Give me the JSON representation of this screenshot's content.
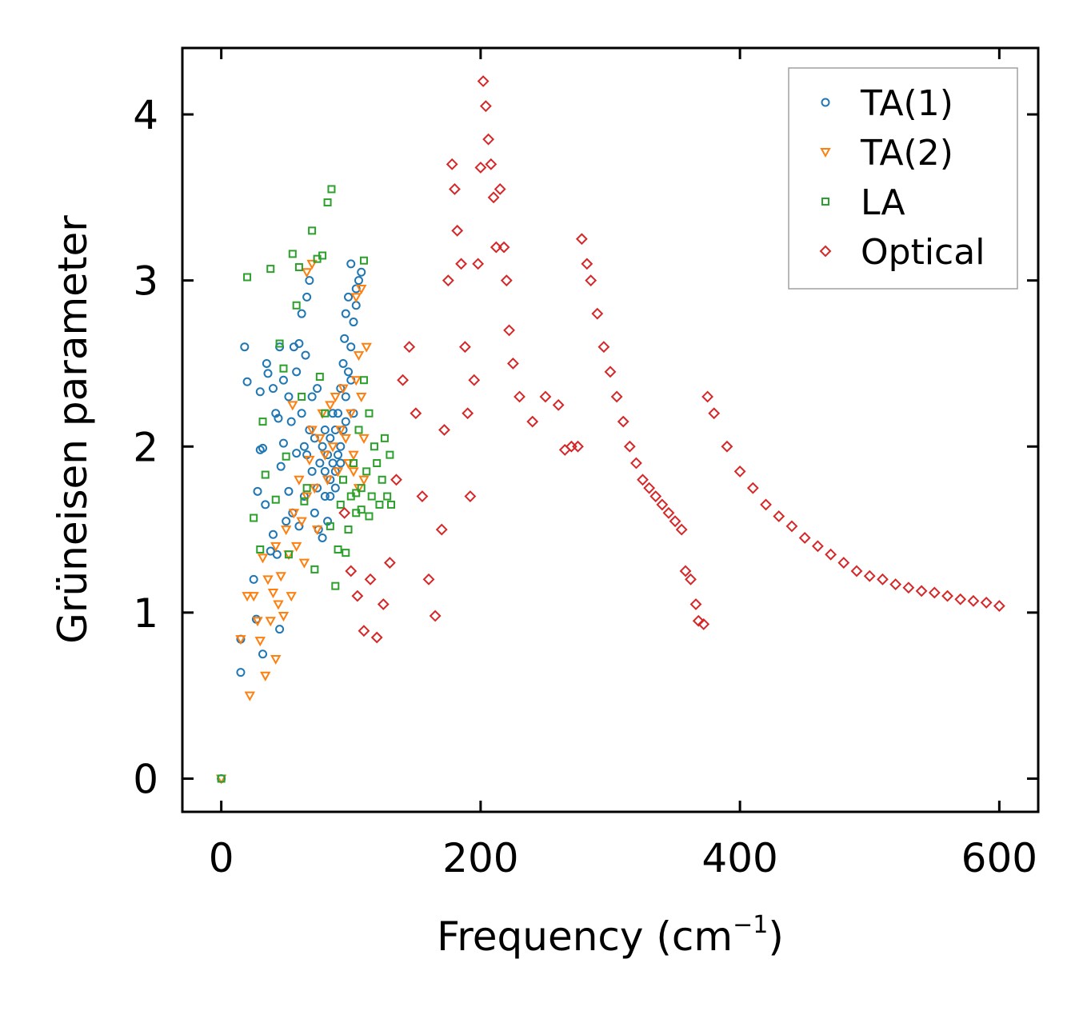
{
  "chart_data": {
    "type": "scatter",
    "title": "",
    "xlabel": "Frequency (cm",
    "xlabel_sup": "−1",
    "xlabel_suffix": ")",
    "ylabel": "Grüneisen parameter",
    "xlim": [
      -30,
      630
    ],
    "ylim": [
      -0.2,
      4.4
    ],
    "xticks": [
      0,
      200,
      400,
      600
    ],
    "yticks": [
      0,
      1,
      2,
      3,
      4
    ],
    "xtick_labels": [
      "0",
      "200",
      "400",
      "600"
    ],
    "ytick_labels": [
      "0",
      "1",
      "2",
      "3",
      "4"
    ],
    "grid": false,
    "legend_position": "top-right",
    "series": [
      {
        "name": "TA(1)",
        "marker": "circle",
        "color": "#1f77b4",
        "points": [
          [
            0,
            0
          ],
          [
            15,
            0.84
          ],
          [
            15,
            0.64
          ],
          [
            18,
            2.6
          ],
          [
            20,
            2.39
          ],
          [
            25,
            1.2
          ],
          [
            27,
            0.96
          ],
          [
            28,
            1.73
          ],
          [
            30,
            2.33
          ],
          [
            30,
            1.98
          ],
          [
            32,
            1.99
          ],
          [
            32,
            0.75
          ],
          [
            34,
            1.65
          ],
          [
            35,
            2.5
          ],
          [
            36,
            2.44
          ],
          [
            38,
            1.37
          ],
          [
            40,
            2.35
          ],
          [
            40,
            1.47
          ],
          [
            42,
            2.2
          ],
          [
            43,
            1.35
          ],
          [
            44,
            2.17
          ],
          [
            45,
            0.9
          ],
          [
            45,
            2.6
          ],
          [
            46,
            1.88
          ],
          [
            48,
            2.02
          ],
          [
            48,
            2.4
          ],
          [
            50,
            1.55
          ],
          [
            52,
            2.3
          ],
          [
            52,
            1.73
          ],
          [
            54,
            2.15
          ],
          [
            55,
            1.6
          ],
          [
            56,
            2.6
          ],
          [
            58,
            1.96
          ],
          [
            58,
            2.45
          ],
          [
            60,
            2.62
          ],
          [
            60,
            1.52
          ],
          [
            62,
            2.2
          ],
          [
            62,
            2.8
          ],
          [
            64,
            2.0
          ],
          [
            64,
            1.7
          ],
          [
            65,
            2.55
          ],
          [
            66,
            2.9
          ],
          [
            66,
            1.95
          ],
          [
            68,
            3.0
          ],
          [
            68,
            2.1
          ],
          [
            70,
            1.85
          ],
          [
            70,
            2.3
          ],
          [
            72,
            1.6
          ],
          [
            72,
            2.05
          ],
          [
            74,
            1.75
          ],
          [
            74,
            2.35
          ],
          [
            75,
            1.5
          ],
          [
            76,
            1.9
          ],
          [
            78,
            2.0
          ],
          [
            78,
            1.45
          ],
          [
            80,
            2.1
          ],
          [
            80,
            1.7
          ],
          [
            82,
            1.95
          ],
          [
            82,
            1.55
          ],
          [
            84,
            2.05
          ],
          [
            84,
            1.8
          ],
          [
            86,
            1.9
          ],
          [
            86,
            2.2
          ],
          [
            88,
            2.1
          ],
          [
            88,
            1.75
          ],
          [
            90,
            2.2
          ],
          [
            90,
            1.95
          ],
          [
            92,
            2.35
          ],
          [
            92,
            2.0
          ],
          [
            94,
            2.5
          ],
          [
            94,
            2.1
          ],
          [
            95,
            2.65
          ],
          [
            96,
            2.3
          ],
          [
            96,
            2.8
          ],
          [
            98,
            2.45
          ],
          [
            98,
            2.9
          ],
          [
            100,
            2.6
          ],
          [
            100,
            3.1
          ],
          [
            102,
            2.75
          ],
          [
            102,
            2.2
          ],
          [
            104,
            2.85
          ],
          [
            104,
            2.95
          ],
          [
            106,
            3.0
          ],
          [
            108,
            3.05
          ],
          [
            100,
            2.4
          ],
          [
            96,
            2.15
          ],
          [
            92,
            1.9
          ],
          [
            88,
            1.85
          ],
          [
            84,
            1.7
          ],
          [
            80,
            1.85
          ]
        ]
      },
      {
        "name": "TA(2)",
        "marker": "triangle-down",
        "color": "#ff7f0e",
        "points": [
          [
            0,
            0
          ],
          [
            15,
            0.84
          ],
          [
            20,
            1.1
          ],
          [
            22,
            0.5
          ],
          [
            25,
            1.1
          ],
          [
            28,
            0.95
          ],
          [
            30,
            0.83
          ],
          [
            32,
            1.33
          ],
          [
            34,
            0.62
          ],
          [
            36,
            1.2
          ],
          [
            38,
            0.95
          ],
          [
            40,
            1.12
          ],
          [
            42,
            0.72
          ],
          [
            42,
            1.4
          ],
          [
            44,
            1.05
          ],
          [
            46,
            1.22
          ],
          [
            48,
            0.98
          ],
          [
            50,
            1.5
          ],
          [
            52,
            1.35
          ],
          [
            54,
            1.1
          ],
          [
            55,
            2.25
          ],
          [
            56,
            1.6
          ],
          [
            58,
            1.4
          ],
          [
            60,
            1.8
          ],
          [
            62,
            1.55
          ],
          [
            64,
            1.3
          ],
          [
            66,
            1.7
          ],
          [
            68,
            1.92
          ],
          [
            70,
            2.1
          ],
          [
            72,
            1.75
          ],
          [
            74,
            1.5
          ],
          [
            76,
            2.05
          ],
          [
            78,
            2.2
          ],
          [
            80,
            1.95
          ],
          [
            82,
            1.8
          ],
          [
            84,
            2.25
          ],
          [
            86,
            2.0
          ],
          [
            88,
            2.3
          ],
          [
            90,
            1.85
          ],
          [
            92,
            2.1
          ],
          [
            94,
            2.35
          ],
          [
            96,
            2.05
          ],
          [
            98,
            1.9
          ],
          [
            100,
            2.2
          ],
          [
            102,
            1.95
          ],
          [
            104,
            2.4
          ],
          [
            106,
            2.55
          ],
          [
            108,
            2.3
          ],
          [
            110,
            2.05
          ],
          [
            112,
            2.6
          ],
          [
            110,
            1.8
          ],
          [
            106,
            1.75
          ],
          [
            102,
            1.85
          ],
          [
            66,
            3.05
          ],
          [
            70,
            3.1
          ],
          [
            104,
            2.9
          ],
          [
            108,
            2.95
          ]
        ]
      },
      {
        "name": "LA",
        "marker": "square",
        "color": "#2ca02c",
        "points": [
          [
            0,
            0
          ],
          [
            20,
            3.02
          ],
          [
            25,
            1.57
          ],
          [
            30,
            1.38
          ],
          [
            32,
            2.15
          ],
          [
            34,
            1.83
          ],
          [
            38,
            3.07
          ],
          [
            42,
            1.68
          ],
          [
            45,
            2.62
          ],
          [
            48,
            2.47
          ],
          [
            50,
            1.94
          ],
          [
            52,
            1.35
          ],
          [
            55,
            3.16
          ],
          [
            58,
            2.85
          ],
          [
            60,
            3.08
          ],
          [
            62,
            2.3
          ],
          [
            64,
            1.67
          ],
          [
            66,
            1.75
          ],
          [
            70,
            3.3
          ],
          [
            72,
            1.26
          ],
          [
            74,
            3.13
          ],
          [
            76,
            2.42
          ],
          [
            78,
            3.15
          ],
          [
            80,
            2.2
          ],
          [
            82,
            3.47
          ],
          [
            84,
            1.52
          ],
          [
            85,
            3.55
          ],
          [
            88,
            1.16
          ],
          [
            90,
            1.38
          ],
          [
            92,
            1.65
          ],
          [
            94,
            1.8
          ],
          [
            96,
            1.36
          ],
          [
            98,
            1.5
          ],
          [
            100,
            1.7
          ],
          [
            102,
            1.9
          ],
          [
            104,
            1.6
          ],
          [
            106,
            2.1
          ],
          [
            108,
            1.75
          ],
          [
            110,
            2.4
          ],
          [
            110,
            3.12
          ],
          [
            112,
            1.85
          ],
          [
            114,
            2.2
          ],
          [
            116,
            1.7
          ],
          [
            118,
            2.0
          ],
          [
            120,
            1.9
          ],
          [
            122,
            1.65
          ],
          [
            124,
            1.8
          ],
          [
            126,
            2.05
          ],
          [
            128,
            1.7
          ],
          [
            130,
            1.95
          ],
          [
            131,
            1.65
          ],
          [
            104,
            1.72
          ],
          [
            108,
            1.62
          ],
          [
            114,
            1.58
          ]
        ]
      },
      {
        "name": "Optical",
        "marker": "diamond",
        "color": "#d62728",
        "points": [
          [
            95,
            1.6
          ],
          [
            100,
            1.25
          ],
          [
            105,
            1.1
          ],
          [
            110,
            0.89
          ],
          [
            115,
            1.2
          ],
          [
            120,
            0.85
          ],
          [
            125,
            1.05
          ],
          [
            130,
            1.3
          ],
          [
            135,
            1.8
          ],
          [
            140,
            2.4
          ],
          [
            145,
            2.6
          ],
          [
            150,
            2.2
          ],
          [
            155,
            1.7
          ],
          [
            160,
            1.2
          ],
          [
            165,
            0.98
          ],
          [
            170,
            1.5
          ],
          [
            172,
            2.1
          ],
          [
            175,
            3.0
          ],
          [
            178,
            3.7
          ],
          [
            180,
            3.55
          ],
          [
            182,
            3.3
          ],
          [
            185,
            3.1
          ],
          [
            188,
            2.6
          ],
          [
            190,
            2.2
          ],
          [
            192,
            1.7
          ],
          [
            195,
            2.4
          ],
          [
            198,
            3.1
          ],
          [
            200,
            3.68
          ],
          [
            202,
            4.2
          ],
          [
            204,
            4.05
          ],
          [
            206,
            3.85
          ],
          [
            208,
            3.7
          ],
          [
            210,
            3.5
          ],
          [
            212,
            3.2
          ],
          [
            215,
            3.55
          ],
          [
            218,
            3.2
          ],
          [
            220,
            3.0
          ],
          [
            222,
            2.7
          ],
          [
            225,
            2.5
          ],
          [
            230,
            2.3
          ],
          [
            240,
            2.15
          ],
          [
            250,
            2.3
          ],
          [
            260,
            2.25
          ],
          [
            265,
            1.98
          ],
          [
            270,
            2.0
          ],
          [
            275,
            2.0
          ],
          [
            278,
            3.25
          ],
          [
            282,
            3.1
          ],
          [
            285,
            3.0
          ],
          [
            290,
            2.8
          ],
          [
            295,
            2.6
          ],
          [
            300,
            2.45
          ],
          [
            305,
            2.3
          ],
          [
            310,
            2.15
          ],
          [
            315,
            2.0
          ],
          [
            320,
            1.9
          ],
          [
            325,
            1.8
          ],
          [
            330,
            1.75
          ],
          [
            335,
            1.7
          ],
          [
            340,
            1.65
          ],
          [
            345,
            1.6
          ],
          [
            350,
            1.55
          ],
          [
            355,
            1.5
          ],
          [
            358,
            1.25
          ],
          [
            362,
            1.2
          ],
          [
            366,
            1.05
          ],
          [
            368,
            0.95
          ],
          [
            372,
            0.93
          ],
          [
            375,
            2.3
          ],
          [
            380,
            2.2
          ],
          [
            390,
            2.0
          ],
          [
            400,
            1.85
          ],
          [
            410,
            1.75
          ],
          [
            420,
            1.65
          ],
          [
            430,
            1.58
          ],
          [
            440,
            1.52
          ],
          [
            450,
            1.45
          ],
          [
            460,
            1.4
          ],
          [
            470,
            1.35
          ],
          [
            480,
            1.3
          ],
          [
            490,
            1.25
          ],
          [
            500,
            1.22
          ],
          [
            510,
            1.2
          ],
          [
            520,
            1.17
          ],
          [
            530,
            1.15
          ],
          [
            540,
            1.13
          ],
          [
            550,
            1.12
          ],
          [
            560,
            1.1
          ],
          [
            570,
            1.08
          ],
          [
            580,
            1.07
          ],
          [
            590,
            1.06
          ],
          [
            600,
            1.04
          ]
        ]
      }
    ]
  }
}
